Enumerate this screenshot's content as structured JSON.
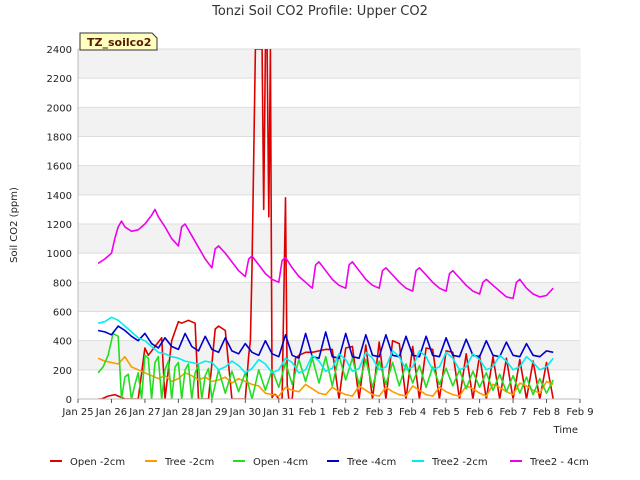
{
  "chart_data": {
    "type": "line",
    "title": "Tonzi Soil CO2 Profile: Upper CO2",
    "xlabel": "Time",
    "ylabel": "Soil CO2 (ppm)",
    "badge": "TZ_soilco2",
    "xlim": [
      0,
      15
    ],
    "ylim": [
      0,
      2400
    ],
    "grid": true,
    "x_ticks": [
      {
        "pos": 0,
        "label": "Jan 25"
      },
      {
        "pos": 1,
        "label": "Jan 26"
      },
      {
        "pos": 2,
        "label": "Jan 27"
      },
      {
        "pos": 3,
        "label": "Jan 28"
      },
      {
        "pos": 4,
        "label": "Jan 29"
      },
      {
        "pos": 5,
        "label": "Jan 30"
      },
      {
        "pos": 6,
        "label": "Jan 31"
      },
      {
        "pos": 7,
        "label": "Feb 1"
      },
      {
        "pos": 8,
        "label": "Feb 2"
      },
      {
        "pos": 9,
        "label": "Feb 3"
      },
      {
        "pos": 10,
        "label": "Feb 4"
      },
      {
        "pos": 11,
        "label": "Feb 5"
      },
      {
        "pos": 12,
        "label": "Feb 6"
      },
      {
        "pos": 13,
        "label": "Feb 7"
      },
      {
        "pos": 14,
        "label": "Feb 8"
      },
      {
        "pos": 15,
        "label": "Feb 9"
      }
    ],
    "y_ticks": [
      0,
      200,
      400,
      600,
      800,
      1000,
      1200,
      1400,
      1600,
      1800,
      2000,
      2200,
      2400
    ],
    "series": [
      {
        "name": "Open -2cm",
        "color": "#dd0000",
        "x": [
          0.6,
          0.7,
          0.9,
          1.1,
          1.4,
          1.5,
          1.6,
          1.8,
          2.0,
          2.1,
          2.3,
          2.5,
          2.6,
          2.8,
          3.0,
          3.1,
          3.3,
          3.5,
          3.6,
          3.9,
          4.1,
          4.2,
          4.4,
          4.6,
          4.7,
          4.8,
          4.9,
          5.0,
          5.1,
          5.15,
          5.2,
          5.3,
          5.4,
          5.5,
          5.55,
          5.6,
          5.65,
          5.7,
          5.75,
          5.8,
          5.85,
          5.9,
          6.0,
          6.1,
          6.2,
          6.25,
          6.3,
          6.4,
          6.5,
          6.6,
          6.8,
          7.0,
          7.2,
          7.4,
          7.6,
          7.8,
          8.0,
          8.2,
          8.4,
          8.6,
          8.8,
          9.0,
          9.2,
          9.4,
          9.6,
          9.8,
          10.0,
          10.2,
          10.4,
          10.6,
          10.8,
          11.0,
          11.2,
          11.4,
          11.6,
          11.8,
          12.0,
          12.2,
          12.4,
          12.6,
          12.8,
          13.0,
          13.2,
          13.4,
          13.6,
          13.8,
          14.0,
          14.2
        ],
        "y": [
          0,
          0,
          20,
          30,
          0,
          0,
          0,
          0,
          350,
          300,
          360,
          420,
          0,
          400,
          530,
          520,
          540,
          520,
          0,
          0,
          480,
          500,
          470,
          0,
          0,
          0,
          0,
          0,
          300,
          400,
          900,
          2400,
          2400,
          2400,
          1300,
          2400,
          2400,
          1250,
          2400,
          10,
          30,
          30,
          0,
          0,
          1380,
          100,
          0,
          0,
          280,
          300,
          320,
          320,
          330,
          340,
          340,
          0,
          350,
          360,
          0,
          370,
          0,
          390,
          0,
          400,
          380,
          0,
          360,
          0,
          350,
          340,
          0,
          330,
          320,
          0,
          310,
          0,
          300,
          0,
          290,
          0,
          280,
          0,
          270,
          0,
          260,
          0,
          250,
          0
        ]
      },
      {
        "name": "Tree -2cm",
        "color": "#ff9900",
        "x": [
          0.6,
          0.8,
          1.0,
          1.2,
          1.4,
          1.6,
          1.8,
          2.0,
          2.2,
          2.4,
          2.6,
          2.8,
          3.0,
          3.2,
          3.4,
          3.6,
          3.8,
          4.0,
          4.2,
          4.4,
          4.6,
          4.8,
          5.0,
          5.2,
          5.4,
          5.6,
          5.8,
          6.0,
          6.2,
          6.4,
          6.6,
          6.8,
          7.0,
          7.2,
          7.4,
          7.6,
          7.8,
          8.0,
          8.2,
          8.4,
          8.6,
          8.8,
          9.0,
          9.2,
          9.4,
          9.6,
          9.8,
          10.0,
          10.2,
          10.4,
          10.6,
          10.8,
          11.0,
          11.2,
          11.4,
          11.6,
          11.8,
          12.0,
          12.2,
          12.4,
          12.6,
          12.8,
          13.0,
          13.2,
          13.4,
          13.6,
          13.8,
          14.0,
          14.2
        ],
        "y": [
          280,
          260,
          250,
          240,
          290,
          220,
          200,
          180,
          160,
          140,
          160,
          120,
          140,
          180,
          160,
          130,
          150,
          120,
          130,
          150,
          110,
          140,
          120,
          100,
          90,
          40,
          30,
          20,
          80,
          60,
          50,
          100,
          70,
          40,
          30,
          80,
          50,
          30,
          20,
          90,
          60,
          30,
          20,
          80,
          50,
          30,
          20,
          90,
          60,
          30,
          20,
          80,
          50,
          30,
          20,
          90,
          70,
          40,
          20,
          100,
          80,
          50,
          30,
          110,
          90,
          60,
          40,
          120,
          100
        ]
      },
      {
        "name": "Open -4cm",
        "color": "#22dd22",
        "x": [
          0.6,
          0.75,
          0.9,
          1.05,
          1.2,
          1.3,
          1.4,
          1.5,
          1.6,
          1.7,
          1.8,
          1.9,
          2.0,
          2.1,
          2.2,
          2.3,
          2.4,
          2.5,
          2.6,
          2.7,
          2.8,
          2.9,
          3.0,
          3.1,
          3.2,
          3.3,
          3.4,
          3.5,
          3.6,
          3.7,
          3.8,
          3.9,
          4.0,
          4.2,
          4.4,
          4.6,
          4.8,
          5.0,
          5.2,
          5.4,
          5.6,
          5.8,
          6.0,
          6.2,
          6.4,
          6.6,
          6.8,
          7.0,
          7.2,
          7.4,
          7.6,
          7.8,
          8.0,
          8.2,
          8.4,
          8.6,
          8.8,
          9.0,
          9.2,
          9.4,
          9.6,
          9.8,
          10.0,
          10.2,
          10.4,
          10.6,
          10.8,
          11.0,
          11.2,
          11.4,
          11.6,
          11.8,
          12.0,
          12.2,
          12.4,
          12.6,
          12.8,
          13.0,
          13.2,
          13.4,
          13.6,
          13.8,
          14.0,
          14.2
        ],
        "y": [
          180,
          220,
          300,
          450,
          430,
          0,
          150,
          170,
          0,
          100,
          180,
          0,
          300,
          280,
          0,
          250,
          290,
          0,
          200,
          260,
          0,
          220,
          250,
          0,
          200,
          240,
          0,
          180,
          230,
          0,
          160,
          210,
          0,
          200,
          40,
          190,
          50,
          180,
          0,
          200,
          60,
          200,
          80,
          250,
          100,
          270,
          120,
          280,
          110,
          290,
          90,
          300,
          130,
          280,
          100,
          270,
          80,
          260,
          100,
          250,
          90,
          240,
          110,
          230,
          80,
          220,
          100,
          210,
          90,
          200,
          70,
          190,
          80,
          180,
          60,
          170,
          50,
          160,
          40,
          150,
          30,
          140,
          40,
          130
        ]
      },
      {
        "name": "Tree -4cm",
        "color": "#0000cc",
        "x": [
          0.6,
          0.8,
          1.0,
          1.2,
          1.4,
          1.6,
          1.8,
          2.0,
          2.2,
          2.4,
          2.6,
          2.8,
          3.0,
          3.2,
          3.4,
          3.6,
          3.8,
          4.0,
          4.2,
          4.4,
          4.6,
          4.8,
          5.0,
          5.2,
          5.4,
          5.6,
          5.8,
          6.0,
          6.2,
          6.4,
          6.6,
          6.8,
          7.0,
          7.2,
          7.4,
          7.6,
          7.8,
          8.0,
          8.2,
          8.4,
          8.6,
          8.8,
          9.0,
          9.2,
          9.4,
          9.6,
          9.8,
          10.0,
          10.2,
          10.4,
          10.6,
          10.8,
          11.0,
          11.2,
          11.4,
          11.6,
          11.8,
          12.0,
          12.2,
          12.4,
          12.6,
          12.8,
          13.0,
          13.2,
          13.4,
          13.6,
          13.8,
          14.0,
          14.2
        ],
        "y": [
          470,
          460,
          440,
          500,
          470,
          430,
          400,
          450,
          380,
          350,
          420,
          360,
          340,
          450,
          360,
          330,
          430,
          340,
          320,
          420,
          330,
          310,
          380,
          320,
          300,
          400,
          310,
          290,
          440,
          300,
          280,
          450,
          290,
          280,
          460,
          290,
          280,
          450,
          290,
          280,
          440,
          300,
          290,
          440,
          300,
          290,
          430,
          300,
          290,
          430,
          300,
          290,
          420,
          300,
          290,
          410,
          300,
          290,
          400,
          300,
          290,
          390,
          300,
          290,
          380,
          300,
          290,
          330,
          320
        ]
      },
      {
        "name": "Tree2 -2cm",
        "color": "#00eeee",
        "x": [
          0.6,
          0.8,
          1.0,
          1.2,
          1.4,
          1.6,
          1.8,
          2.0,
          2.2,
          2.4,
          2.6,
          2.8,
          3.0,
          3.2,
          3.4,
          3.6,
          3.8,
          4.0,
          4.2,
          4.4,
          4.6,
          4.8,
          5.0,
          5.2,
          5.4,
          5.6,
          5.8,
          6.0,
          6.2,
          6.4,
          6.6,
          6.8,
          7.0,
          7.2,
          7.4,
          7.6,
          7.8,
          8.0,
          8.2,
          8.4,
          8.6,
          8.8,
          9.0,
          9.2,
          9.4,
          9.6,
          9.8,
          10.0,
          10.2,
          10.4,
          10.6,
          10.8,
          11.0,
          11.2,
          11.4,
          11.6,
          11.8,
          12.0,
          12.2,
          12.4,
          12.6,
          12.8,
          13.0,
          13.2,
          13.4,
          13.6,
          13.8,
          14.0,
          14.2
        ],
        "y": [
          520,
          530,
          560,
          540,
          500,
          460,
          420,
          400,
          360,
          320,
          310,
          290,
          280,
          260,
          250,
          240,
          260,
          250,
          200,
          220,
          260,
          230,
          180,
          210,
          270,
          240,
          180,
          200,
          280,
          250,
          180,
          200,
          300,
          260,
          190,
          210,
          310,
          270,
          190,
          210,
          320,
          280,
          200,
          220,
          330,
          290,
          200,
          220,
          330,
          290,
          200,
          220,
          320,
          280,
          200,
          220,
          310,
          270,
          200,
          220,
          300,
          260,
          200,
          220,
          290,
          250,
          200,
          220,
          280
        ]
      },
      {
        "name": "Tree2 - 4cm",
        "color": "#ee00ee",
        "x": [
          0.6,
          0.8,
          1.0,
          1.1,
          1.2,
          1.3,
          1.4,
          1.6,
          1.8,
          2.0,
          2.2,
          2.3,
          2.4,
          2.6,
          2.8,
          3.0,
          3.1,
          3.2,
          3.4,
          3.6,
          3.8,
          4.0,
          4.1,
          4.2,
          4.4,
          4.6,
          4.8,
          5.0,
          5.1,
          5.2,
          5.4,
          5.6,
          5.8,
          6.0,
          6.1,
          6.2,
          6.4,
          6.6,
          6.8,
          7.0,
          7.1,
          7.2,
          7.4,
          7.6,
          7.8,
          8.0,
          8.1,
          8.2,
          8.4,
          8.6,
          8.8,
          9.0,
          9.1,
          9.2,
          9.4,
          9.6,
          9.8,
          10.0,
          10.1,
          10.2,
          10.4,
          10.6,
          10.8,
          11.0,
          11.1,
          11.2,
          11.4,
          11.6,
          11.8,
          12.0,
          12.1,
          12.2,
          12.4,
          12.6,
          12.8,
          13.0,
          13.1,
          13.2,
          13.4,
          13.6,
          13.8,
          14.0,
          14.2
        ],
        "y": [
          930,
          960,
          1000,
          1100,
          1180,
          1220,
          1180,
          1150,
          1160,
          1200,
          1260,
          1300,
          1250,
          1180,
          1100,
          1050,
          1180,
          1200,
          1120,
          1040,
          960,
          900,
          1030,
          1050,
          1000,
          940,
          880,
          840,
          960,
          980,
          920,
          860,
          820,
          800,
          950,
          970,
          900,
          840,
          800,
          760,
          920,
          940,
          880,
          820,
          780,
          760,
          920,
          940,
          880,
          820,
          780,
          760,
          880,
          900,
          850,
          800,
          760,
          740,
          880,
          900,
          850,
          800,
          760,
          740,
          860,
          880,
          830,
          780,
          740,
          720,
          800,
          820,
          780,
          740,
          700,
          690,
          800,
          820,
          760,
          720,
          700,
          710,
          760
        ]
      }
    ],
    "legend": [
      "Open -2cm",
      "Tree -2cm",
      "Open -4cm",
      "Tree -4cm",
      "Tree2 -2cm",
      "Tree2 - 4cm"
    ],
    "legend_position": "bottom"
  }
}
